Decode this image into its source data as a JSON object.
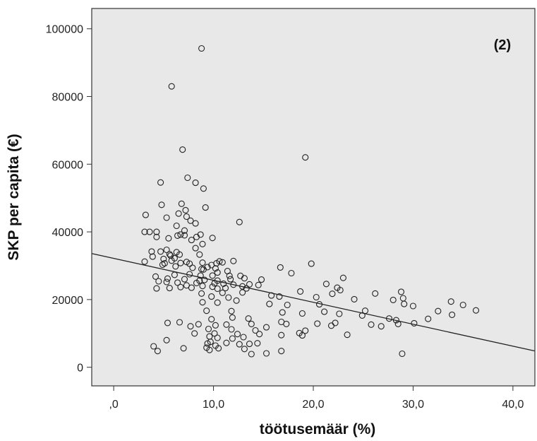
{
  "chart_data": {
    "type": "scatter",
    "annotation": "(2)",
    "xlabel": "töötusemäär (%)",
    "ylabel": "SKP per capita (€)",
    "xlim": [
      -2.2,
      42.2
    ],
    "ylim": [
      -5500,
      106000
    ],
    "xticks": [
      {
        "value": 0,
        "label": ",0"
      },
      {
        "value": 10,
        "label": "10,0"
      },
      {
        "value": 20,
        "label": "20,0"
      },
      {
        "value": 30,
        "label": "30,0"
      },
      {
        "value": 40,
        "label": "40,0"
      }
    ],
    "yticks": [
      {
        "value": 0,
        "label": "0"
      },
      {
        "value": 20000,
        "label": "20000"
      },
      {
        "value": 40000,
        "label": "40000"
      },
      {
        "value": 60000,
        "label": "60000"
      },
      {
        "value": 80000,
        "label": "80000"
      },
      {
        "value": 100000,
        "label": "100000"
      }
    ],
    "grid": false,
    "legend": "none",
    "colors": {
      "plot_background": "#e8e8e8",
      "marker": "#222222",
      "fit_line": "#222222",
      "frame": "#333333"
    },
    "fit_line": {
      "x": [
        -2.2,
        42.2
      ],
      "y": [
        33600,
        4800
      ]
    },
    "points": [
      [
        8.8,
        94200
      ],
      [
        5.8,
        83000
      ],
      [
        6.9,
        64300
      ],
      [
        19.2,
        62000
      ],
      [
        7.4,
        56000
      ],
      [
        4.7,
        54600
      ],
      [
        8.2,
        54500
      ],
      [
        9.0,
        52800
      ],
      [
        6.8,
        48300
      ],
      [
        4.8,
        48000
      ],
      [
        9.2,
        47200
      ],
      [
        7.2,
        46400
      ],
      [
        6.5,
        45400
      ],
      [
        3.2,
        45000
      ],
      [
        7.3,
        44500
      ],
      [
        5.3,
        44200
      ],
      [
        7.7,
        43300
      ],
      [
        12.6,
        42900
      ],
      [
        8.2,
        42500
      ],
      [
        6.3,
        41800
      ],
      [
        7.1,
        40400
      ],
      [
        3.1,
        40000
      ],
      [
        3.6,
        40000
      ],
      [
        4.3,
        40000
      ],
      [
        6.7,
        39200
      ],
      [
        7.1,
        39000
      ],
      [
        6.4,
        38900
      ],
      [
        8.7,
        39200
      ],
      [
        5.5,
        38100
      ],
      [
        8.3,
        38500
      ],
      [
        4.3,
        38500
      ],
      [
        9.9,
        38200
      ],
      [
        7.8,
        37600
      ],
      [
        8.9,
        36400
      ],
      [
        8.2,
        35200
      ],
      [
        5.3,
        34700
      ],
      [
        3.8,
        34200
      ],
      [
        4.7,
        34200
      ],
      [
        6.3,
        34000
      ],
      [
        5.6,
        33400
      ],
      [
        6.6,
        33300
      ],
      [
        8.6,
        33300
      ],
      [
        5.7,
        33000
      ],
      [
        3.9,
        32700
      ],
      [
        6.1,
        32200
      ],
      [
        5.0,
        32000
      ],
      [
        5.8,
        31500
      ],
      [
        7.3,
        31100
      ],
      [
        10.6,
        31300
      ],
      [
        10.9,
        31000
      ],
      [
        8.9,
        30900
      ],
      [
        6.7,
        30800
      ],
      [
        10.3,
        30700
      ],
      [
        3.1,
        31200
      ],
      [
        5.1,
        30700
      ],
      [
        7.6,
        30600
      ],
      [
        12.0,
        31400
      ],
      [
        4.9,
        30300
      ],
      [
        9.8,
        30200
      ],
      [
        6.2,
        29800
      ],
      [
        7.9,
        29400
      ],
      [
        9.4,
        29600
      ],
      [
        10.2,
        29200
      ],
      [
        16.7,
        29500
      ],
      [
        19.8,
        30600
      ],
      [
        8.8,
        29000
      ],
      [
        9.0,
        28900
      ],
      [
        11.4,
        28400
      ],
      [
        10.4,
        28000
      ],
      [
        7.6,
        27500
      ],
      [
        6.1,
        27300
      ],
      [
        9.9,
        27100
      ],
      [
        11.6,
        27000
      ],
      [
        8.7,
        27100
      ],
      [
        12.7,
        27000
      ],
      [
        17.8,
        27800
      ],
      [
        23.0,
        26400
      ],
      [
        4.2,
        26800
      ],
      [
        5.4,
        26200
      ],
      [
        7.1,
        26000
      ],
      [
        9.1,
        25800
      ],
      [
        10.4,
        25600
      ],
      [
        13.1,
        26300
      ],
      [
        14.8,
        25900
      ],
      [
        11.7,
        26000
      ],
      [
        8.6,
        25600
      ],
      [
        4.5,
        25400
      ],
      [
        5.3,
        25200
      ],
      [
        6.4,
        25000
      ],
      [
        8.3,
        24900
      ],
      [
        10.1,
        24800
      ],
      [
        11.0,
        24700
      ],
      [
        12.0,
        24400
      ],
      [
        13.6,
        24500
      ],
      [
        14.5,
        24300
      ],
      [
        21.3,
        24600
      ],
      [
        22.4,
        23500
      ],
      [
        7.3,
        24200
      ],
      [
        8.9,
        24000
      ],
      [
        9.9,
        23800
      ],
      [
        6.7,
        23700
      ],
      [
        7.8,
        23500
      ],
      [
        10.4,
        23200
      ],
      [
        5.6,
        23400
      ],
      [
        4.3,
        23300
      ],
      [
        11.2,
        23400
      ],
      [
        13.3,
        23300
      ],
      [
        18.7,
        22400
      ],
      [
        22.7,
        22800
      ],
      [
        24.1,
        20100
      ],
      [
        8.8,
        21800
      ],
      [
        10.9,
        22000
      ],
      [
        12.9,
        22100
      ],
      [
        15.8,
        21200
      ],
      [
        16.6,
        20900
      ],
      [
        20.3,
        20700
      ],
      [
        21.9,
        21700
      ],
      [
        26.2,
        21800
      ],
      [
        28.8,
        22300
      ],
      [
        29.0,
        20400
      ],
      [
        33.8,
        19400
      ],
      [
        9.8,
        20900
      ],
      [
        11.5,
        20600
      ],
      [
        12.3,
        19700
      ],
      [
        8.9,
        19200
      ],
      [
        10.4,
        19100
      ],
      [
        15.6,
        18700
      ],
      [
        17.4,
        18400
      ],
      [
        20.6,
        18600
      ],
      [
        28.0,
        19900
      ],
      [
        35.0,
        18400
      ],
      [
        30.0,
        18100
      ],
      [
        25.2,
        16700
      ],
      [
        31.5,
        14300
      ],
      [
        9.3,
        16700
      ],
      [
        11.8,
        16600
      ],
      [
        16.9,
        16200
      ],
      [
        18.9,
        15900
      ],
      [
        21.1,
        16400
      ],
      [
        22.6,
        15800
      ],
      [
        24.9,
        15300
      ],
      [
        27.6,
        14400
      ],
      [
        29.1,
        18700
      ],
      [
        33.9,
        15500
      ],
      [
        36.3,
        16800
      ],
      [
        9.8,
        14200
      ],
      [
        11.9,
        14700
      ],
      [
        13.5,
        14400
      ],
      [
        16.8,
        13400
      ],
      [
        20.4,
        12900
      ],
      [
        22.2,
        13100
      ],
      [
        25.8,
        12600
      ],
      [
        26.8,
        12100
      ],
      [
        28.3,
        13900
      ],
      [
        32.5,
        16600
      ],
      [
        6.6,
        13300
      ],
      [
        5.4,
        13100
      ],
      [
        8.5,
        12700
      ],
      [
        10.2,
        12400
      ],
      [
        11.3,
        12600
      ],
      [
        13.8,
        12800
      ],
      [
        15.3,
        11800
      ],
      [
        17.3,
        12800
      ],
      [
        21.8,
        12300
      ],
      [
        28.5,
        12800
      ],
      [
        30.1,
        13000
      ],
      [
        7.7,
        12100
      ],
      [
        9.5,
        11300
      ],
      [
        11.8,
        11200
      ],
      [
        14.2,
        10900
      ],
      [
        18.6,
        10100
      ],
      [
        23.4,
        9600
      ],
      [
        8.1,
        10000
      ],
      [
        10.1,
        10000
      ],
      [
        12.4,
        9800
      ],
      [
        16.8,
        9500
      ],
      [
        9.6,
        9100
      ],
      [
        10.4,
        8700
      ],
      [
        11.9,
        8500
      ],
      [
        13.0,
        8900
      ],
      [
        9.7,
        7500
      ],
      [
        11.3,
        7200
      ],
      [
        13.6,
        6900
      ],
      [
        9.4,
        7000
      ],
      [
        10.2,
        6400
      ],
      [
        12.6,
        6800
      ],
      [
        14.4,
        7100
      ],
      [
        9.3,
        5800
      ],
      [
        10.5,
        5600
      ],
      [
        13.1,
        5400
      ],
      [
        4.0,
        6200
      ],
      [
        4.4,
        4800
      ],
      [
        5.3,
        8000
      ],
      [
        7.0,
        5600
      ],
      [
        9.6,
        5100
      ],
      [
        13.8,
        3900
      ],
      [
        15.3,
        4100
      ],
      [
        16.8,
        4800
      ],
      [
        18.9,
        9400
      ],
      [
        19.2,
        10800
      ],
      [
        28.9,
        4000
      ],
      [
        14.6,
        9800
      ],
      [
        12.9,
        23900
      ]
    ]
  }
}
